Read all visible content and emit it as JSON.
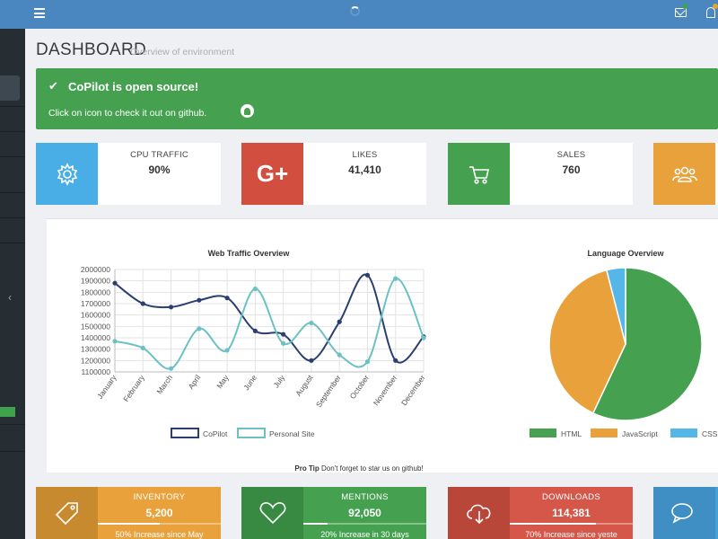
{
  "header": {
    "menu_icon": "hamburger-icon",
    "loading_icon": "spinner-icon",
    "mail_icon": "envelope-icon",
    "bell_icon": "bell-icon"
  },
  "page": {
    "title": "DASHBOARD",
    "subtitle": "Overview of environment"
  },
  "alert": {
    "heading": "CoPilot is open source!",
    "text": "Click on icon to check it out on github.",
    "icon": "github-icon"
  },
  "stats": [
    {
      "label": "CPU TRAFFIC",
      "value": "90%",
      "icon": "gear-icon",
      "color": "#4aaee6"
    },
    {
      "label": "LIKES",
      "value": "41,410",
      "icon": "google-plus-icon",
      "color": "#d24f3f"
    },
    {
      "label": "SALES",
      "value": "760",
      "icon": "cart-icon",
      "color": "#45a150"
    },
    {
      "label": "",
      "value": "",
      "icon": "users-icon",
      "color": "#e9a23b"
    }
  ],
  "chart_data": [
    {
      "type": "line",
      "title": "Web Traffic Overview",
      "categories": [
        "January",
        "February",
        "March",
        "April",
        "May",
        "June",
        "July",
        "August",
        "September",
        "October",
        "November",
        "December"
      ],
      "ylim": [
        1100000,
        2000000
      ],
      "yticks": [
        "2000000",
        "1900000",
        "1800000",
        "1700000",
        "1600000",
        "1500000",
        "1400000",
        "1300000",
        "1200000",
        "1100000"
      ],
      "series": [
        {
          "name": "CoPilot",
          "color": "#2b3f6e",
          "values": [
            1880000,
            1700000,
            1670000,
            1730000,
            1750000,
            1460000,
            1430000,
            1200000,
            1540000,
            1950000,
            1200000,
            1410000
          ]
        },
        {
          "name": "Personal Site",
          "color": "#6bc1c3",
          "values": [
            1370000,
            1310000,
            1130000,
            1480000,
            1290000,
            1830000,
            1350000,
            1530000,
            1250000,
            1190000,
            1920000,
            1400000
          ]
        }
      ],
      "grid": true,
      "legend": "bottom"
    },
    {
      "type": "pie",
      "title": "Language Overview",
      "categories": [
        "HTML",
        "JavaScript",
        "CSS"
      ],
      "values": [
        57,
        39,
        4
      ],
      "colors": [
        "#45a150",
        "#e9a23b",
        "#55b6e8"
      ],
      "legend": "bottom"
    }
  ],
  "protip": {
    "label": "Pro Tip",
    "text": "Don't forget to star us on github!"
  },
  "bottom_tiles": [
    {
      "label": "INVENTORY",
      "value": "5,200",
      "progress": 0.5,
      "desc": "50% Increase since May",
      "icon": "tag-icon",
      "dark": "#c88a2e",
      "light": "#e9a23b"
    },
    {
      "label": "MENTIONS",
      "value": "92,050",
      "progress": 0.2,
      "desc": "20% Increase in 30 days",
      "icon": "heart-icon",
      "dark": "#388a43",
      "light": "#45a150"
    },
    {
      "label": "DOWNLOADS",
      "value": "114,381",
      "progress": 0.7,
      "desc": "70% Increase since yeste",
      "icon": "cloud-download-icon",
      "dark": "#b8473a",
      "light": "#d4574a"
    },
    {
      "label": "",
      "value": "",
      "progress": 0,
      "desc": "",
      "icon": "chat-icon",
      "dark": "#3f8fc4",
      "light": "#4aa0d6"
    }
  ]
}
